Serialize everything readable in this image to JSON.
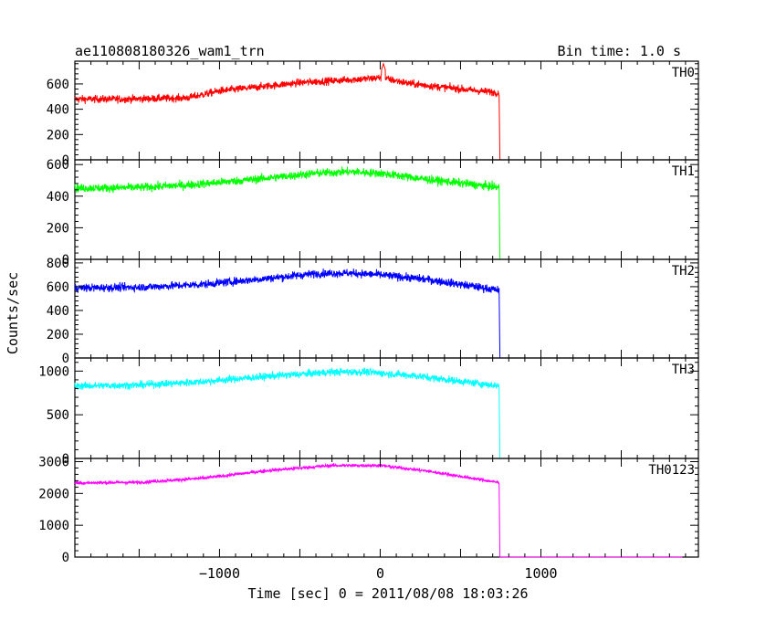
{
  "chart_data": {
    "type": "line",
    "title": "ae110808180326_wam1_trn",
    "bin_time": "Bin time: 1.0 s",
    "xlabel": "Time [sec] 0 = 2011/08/08 18:03:26",
    "ylabel": "Counts/sec",
    "xlim": [
      -1900,
      1980
    ],
    "x_ticks": [
      -1000,
      0,
      1000
    ],
    "x_tick_labels": [
      "−1000",
      "0",
      "1000"
    ],
    "grid": false,
    "panels": [
      {
        "name": "TH0",
        "color": "#ff0000",
        "ylim": [
          0,
          780
        ],
        "y_ticks": [
          0,
          200,
          400,
          600
        ],
        "y_tick_labels": [
          "0",
          "200",
          "400",
          "600"
        ],
        "noise": 28,
        "profile": [
          [
            -1900,
            480
          ],
          [
            -1600,
            480
          ],
          [
            -1200,
            490
          ],
          [
            -1000,
            545
          ],
          [
            -500,
            610
          ],
          [
            -100,
            640
          ],
          [
            0,
            650
          ],
          [
            200,
            600
          ],
          [
            500,
            560
          ],
          [
            740,
            530
          ],
          [
            745,
            0
          ],
          [
            1880,
            0
          ]
        ],
        "spikes": [
          [
            20,
            760
          ]
        ]
      },
      {
        "name": "TH1",
        "color": "#00ff00",
        "ylim": [
          0,
          630
        ],
        "y_ticks": [
          0,
          200,
          400,
          600
        ],
        "y_tick_labels": [
          "0",
          "200",
          "400",
          "600"
        ],
        "noise": 25,
        "profile": [
          [
            -1900,
            450
          ],
          [
            -1500,
            455
          ],
          [
            -1200,
            470
          ],
          [
            -800,
            505
          ],
          [
            -400,
            545
          ],
          [
            -200,
            555
          ],
          [
            0,
            545
          ],
          [
            300,
            505
          ],
          [
            740,
            455
          ],
          [
            745,
            0
          ],
          [
            1880,
            0
          ]
        ],
        "spikes": []
      },
      {
        "name": "TH2",
        "color": "#0000ff",
        "ylim": [
          0,
          830
        ],
        "y_ticks": [
          0,
          200,
          400,
          600,
          800
        ],
        "y_tick_labels": [
          "0",
          "200",
          "400",
          "600",
          "800"
        ],
        "noise": 32,
        "profile": [
          [
            -1900,
            590
          ],
          [
            -1500,
            595
          ],
          [
            -1100,
            620
          ],
          [
            -700,
            670
          ],
          [
            -400,
            710
          ],
          [
            -200,
            715
          ],
          [
            0,
            700
          ],
          [
            300,
            660
          ],
          [
            740,
            570
          ],
          [
            745,
            0
          ],
          [
            1880,
            0
          ]
        ],
        "spikes": []
      },
      {
        "name": "TH3",
        "color": "#00ffff",
        "ylim": [
          0,
          1150
        ],
        "y_ticks": [
          0,
          500,
          1000
        ],
        "y_tick_labels": [
          "0",
          "500",
          "1000"
        ],
        "noise": 40,
        "profile": [
          [
            -1900,
            830
          ],
          [
            -1500,
            840
          ],
          [
            -1100,
            880
          ],
          [
            -700,
            940
          ],
          [
            -300,
            990
          ],
          [
            -100,
            990
          ],
          [
            200,
            950
          ],
          [
            740,
            830
          ],
          [
            745,
            0
          ],
          [
            1880,
            0
          ]
        ],
        "spikes": []
      },
      {
        "name": "TH0123",
        "color": "#ff00ff",
        "ylim": [
          0,
          3100
        ],
        "y_ticks": [
          0,
          1000,
          2000,
          3000
        ],
        "y_tick_labels": [
          "0",
          "1000",
          "2000",
          "3000"
        ],
        "noise": 50,
        "profile": [
          [
            -1900,
            2330
          ],
          [
            -1500,
            2350
          ],
          [
            -1100,
            2480
          ],
          [
            -700,
            2720
          ],
          [
            -300,
            2880
          ],
          [
            0,
            2880
          ],
          [
            300,
            2700
          ],
          [
            740,
            2340
          ],
          [
            745,
            0
          ],
          [
            1880,
            0
          ]
        ],
        "spikes": []
      }
    ]
  }
}
